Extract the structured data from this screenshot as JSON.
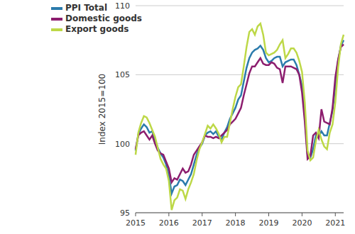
{
  "chart_data": {
    "type": "line",
    "y_label": "Index 2015=100",
    "categories": [
      "2015",
      null,
      null,
      null,
      null,
      null,
      null,
      null,
      null,
      null,
      null,
      null,
      "2016",
      null,
      null,
      null,
      null,
      null,
      null,
      null,
      null,
      null,
      null,
      null,
      "2017",
      null,
      null,
      null,
      null,
      null,
      null,
      null,
      null,
      null,
      null,
      null,
      "2018",
      null,
      null,
      null,
      null,
      null,
      null,
      null,
      null,
      null,
      null,
      null,
      "2019",
      null,
      null,
      null,
      null,
      null,
      null,
      null,
      null,
      null,
      null,
      null,
      "2020",
      null,
      null,
      null,
      null,
      null,
      null,
      null,
      null,
      null,
      null,
      null,
      "2021",
      null,
      null,
      null
    ],
    "series": [
      {
        "name": "PPI Total",
        "color": "#2b7bac",
        "values": [
          99.5,
          100.7,
          101.1,
          101.4,
          101.2,
          100.8,
          100.9,
          100.3,
          99.7,
          99.3,
          99.0,
          98.5,
          97.7,
          96.4,
          96.9,
          97.0,
          97.4,
          97.3,
          97.0,
          97.4,
          97.8,
          98.5,
          99.2,
          99.7,
          100.0,
          100.6,
          100.8,
          100.9,
          100.7,
          100.9,
          100.5,
          100.3,
          100.8,
          101.2,
          101.8,
          102.2,
          102.6,
          103.2,
          103.5,
          104.5,
          105.5,
          106.2,
          106.6,
          106.8,
          106.9,
          107.1,
          106.8,
          106.2,
          105.9,
          106.0,
          106.2,
          106.3,
          106.3,
          105.6,
          105.9,
          106.0,
          106.1,
          106.1,
          105.7,
          105.0,
          104.2,
          102.0,
          99.2,
          99.0,
          99.6,
          100.6,
          100.5,
          100.9,
          100.6,
          100.6,
          101.5,
          102.4,
          104.2,
          106.0,
          107.1,
          107.5
        ]
      },
      {
        "name": "Domestic goods",
        "color": "#8c1d6e",
        "values": [
          99.6,
          100.6,
          100.8,
          100.9,
          100.6,
          100.3,
          100.6,
          100.0,
          99.5,
          99.3,
          99.2,
          98.7,
          98.2,
          97.2,
          97.5,
          97.4,
          97.8,
          98.2,
          97.9,
          98.0,
          98.5,
          99.2,
          99.5,
          99.8,
          100.1,
          100.6,
          100.5,
          100.5,
          100.4,
          100.5,
          100.4,
          100.6,
          100.8,
          101.0,
          101.4,
          101.6,
          101.8,
          102.2,
          102.6,
          103.5,
          104.3,
          105.1,
          105.6,
          105.6,
          105.9,
          106.2,
          105.8,
          105.7,
          105.7,
          105.9,
          105.8,
          105.5,
          105.4,
          104.4,
          105.6,
          105.6,
          105.6,
          105.5,
          105.4,
          105.0,
          103.7,
          101.6,
          98.9,
          99.1,
          100.6,
          100.8,
          100.4,
          102.5,
          101.6,
          101.5,
          101.4,
          102.6,
          104.8,
          106.1,
          107.0,
          107.2
        ]
      },
      {
        "name": "Export goods",
        "color": "#bdd847",
        "values": [
          99.2,
          100.8,
          101.5,
          102.0,
          101.9,
          101.5,
          101.0,
          100.5,
          99.7,
          98.9,
          98.5,
          98.2,
          97.3,
          95.2,
          95.9,
          96.1,
          96.7,
          96.6,
          96.0,
          96.7,
          97.2,
          97.8,
          98.8,
          99.6,
          100.1,
          100.7,
          101.3,
          101.1,
          101.4,
          101.1,
          100.7,
          100.1,
          100.5,
          100.5,
          101.5,
          102.5,
          103.4,
          104.1,
          104.3,
          105.6,
          107.0,
          108.1,
          108.3,
          107.9,
          108.5,
          108.7,
          107.9,
          106.6,
          106.4,
          106.5,
          106.6,
          106.8,
          107.2,
          107.5,
          106.2,
          106.5,
          106.9,
          106.9,
          106.6,
          106.0,
          105.2,
          103.0,
          99.5,
          98.8,
          99.0,
          100.2,
          101.0,
          100.3,
          99.8,
          99.6,
          100.8,
          101.4,
          103.0,
          105.5,
          107.2,
          107.9
        ]
      }
    ],
    "ylim": [
      95,
      110
    ],
    "yticks": [
      95,
      100,
      105,
      110
    ],
    "grid": true,
    "legend": "top-left"
  }
}
